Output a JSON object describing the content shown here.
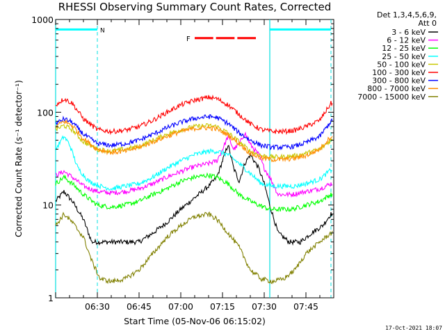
{
  "chart_data": {
    "type": "line",
    "title": "RHESSI Observing Summary Count Rates, Corrected",
    "xlabel": "Start Time (05-Nov-06 06:15:02)",
    "ylabel": "Corrected Count Rate (s⁻¹ detector⁻¹)",
    "timestamp": "17-Oct-2021 18:07",
    "yscale": "log",
    "ylim": [
      1,
      1000
    ],
    "xlim_minutes": [
      0,
      100
    ],
    "x_ticks": [
      {
        "label": "06:30",
        "t": 15
      },
      {
        "label": "06:45",
        "t": 30
      },
      {
        "label": "07:00",
        "t": 45
      },
      {
        "label": "07:15",
        "t": 60
      },
      {
        "label": "07:30",
        "t": 75
      },
      {
        "label": "07:45",
        "t": 90
      }
    ],
    "y_ticks": [
      {
        "label": "1",
        "v": 1
      },
      {
        "label": "10",
        "v": 10
      },
      {
        "label": "100",
        "v": 100
      },
      {
        "label": "1000",
        "v": 1000
      }
    ],
    "legend_header": [
      "Det 1,3,4,5,6,9,",
      "Att 0"
    ],
    "legend_position": "right",
    "series": [
      {
        "name": "3 - 6 keV",
        "color": "#000000",
        "points": [
          [
            0,
            11
          ],
          [
            3,
            14
          ],
          [
            6,
            11
          ],
          [
            10,
            7
          ],
          [
            13,
            4
          ],
          [
            16,
            4
          ],
          [
            20,
            4
          ],
          [
            25,
            4
          ],
          [
            30,
            4
          ],
          [
            35,
            5
          ],
          [
            40,
            6.5
          ],
          [
            45,
            9
          ],
          [
            50,
            12
          ],
          [
            55,
            16
          ],
          [
            58,
            20
          ],
          [
            60,
            30
          ],
          [
            62,
            45
          ],
          [
            64,
            25
          ],
          [
            66,
            18
          ],
          [
            68,
            28
          ],
          [
            70,
            35
          ],
          [
            73,
            25
          ],
          [
            75,
            17
          ],
          [
            77,
            10
          ],
          [
            80,
            5
          ],
          [
            84,
            4
          ],
          [
            88,
            4
          ],
          [
            92,
            5
          ],
          [
            96,
            6
          ],
          [
            99,
            8
          ]
        ]
      },
      {
        "name": "6 - 12 keV",
        "color": "#ff00ff",
        "points": [
          [
            0,
            21
          ],
          [
            3,
            23
          ],
          [
            6,
            20
          ],
          [
            10,
            16
          ],
          [
            15,
            14
          ],
          [
            20,
            13.5
          ],
          [
            25,
            14
          ],
          [
            30,
            15
          ],
          [
            35,
            17
          ],
          [
            40,
            20
          ],
          [
            45,
            23
          ],
          [
            50,
            26
          ],
          [
            55,
            28
          ],
          [
            58,
            30
          ],
          [
            60,
            40
          ],
          [
            62,
            55
          ],
          [
            64,
            40
          ],
          [
            66,
            45
          ],
          [
            68,
            60
          ],
          [
            70,
            45
          ],
          [
            73,
            35
          ],
          [
            75,
            25
          ],
          [
            77,
            20
          ],
          [
            80,
            13
          ],
          [
            85,
            13
          ],
          [
            90,
            14
          ],
          [
            95,
            15
          ],
          [
            99,
            17
          ]
        ]
      },
      {
        "name": "12 - 25 keV",
        "color": "#00ff00",
        "points": [
          [
            0,
            17
          ],
          [
            3,
            20
          ],
          [
            6,
            17
          ],
          [
            10,
            13
          ],
          [
            15,
            10
          ],
          [
            20,
            9.5
          ],
          [
            25,
            10
          ],
          [
            30,
            11
          ],
          [
            35,
            13
          ],
          [
            40,
            15
          ],
          [
            45,
            18
          ],
          [
            50,
            20
          ],
          [
            55,
            21
          ],
          [
            58,
            20
          ],
          [
            62,
            17
          ],
          [
            66,
            13
          ],
          [
            70,
            11
          ],
          [
            73,
            10
          ],
          [
            77,
            9
          ],
          [
            80,
            9
          ],
          [
            85,
            9
          ],
          [
            90,
            10
          ],
          [
            95,
            11
          ],
          [
            99,
            13
          ]
        ]
      },
      {
        "name": "25 - 50 keV",
        "color": "#00ffff",
        "points": [
          [
            0,
            40
          ],
          [
            3,
            55
          ],
          [
            5,
            45
          ],
          [
            8,
            25
          ],
          [
            12,
            18
          ],
          [
            16,
            16
          ],
          [
            20,
            15
          ],
          [
            25,
            16
          ],
          [
            30,
            17
          ],
          [
            35,
            20
          ],
          [
            40,
            25
          ],
          [
            45,
            30
          ],
          [
            50,
            35
          ],
          [
            55,
            38
          ],
          [
            58,
            38
          ],
          [
            62,
            35
          ],
          [
            66,
            28
          ],
          [
            70,
            22
          ],
          [
            74,
            17
          ],
          [
            78,
            16
          ],
          [
            82,
            16
          ],
          [
            86,
            16
          ],
          [
            90,
            17
          ],
          [
            95,
            19
          ],
          [
            99,
            24
          ]
        ]
      },
      {
        "name": "50 - 100 keV",
        "color": "#c8c800",
        "points": [
          [
            0,
            65
          ],
          [
            3,
            72
          ],
          [
            6,
            65
          ],
          [
            10,
            48
          ],
          [
            15,
            40
          ],
          [
            20,
            38
          ],
          [
            25,
            40
          ],
          [
            30,
            43
          ],
          [
            35,
            50
          ],
          [
            40,
            58
          ],
          [
            45,
            65
          ],
          [
            50,
            70
          ],
          [
            55,
            72
          ],
          [
            58,
            70
          ],
          [
            62,
            60
          ],
          [
            66,
            48
          ],
          [
            70,
            38
          ],
          [
            74,
            34
          ],
          [
            78,
            33
          ],
          [
            82,
            33
          ],
          [
            86,
            34
          ],
          [
            90,
            36
          ],
          [
            95,
            40
          ],
          [
            99,
            50
          ]
        ]
      },
      {
        "name": "100 - 300 keV",
        "color": "#ff0000",
        "points": [
          [
            0,
            120
          ],
          [
            3,
            140
          ],
          [
            6,
            125
          ],
          [
            10,
            85
          ],
          [
            15,
            65
          ],
          [
            20,
            62
          ],
          [
            25,
            64
          ],
          [
            30,
            70
          ],
          [
            35,
            82
          ],
          [
            40,
            100
          ],
          [
            45,
            120
          ],
          [
            50,
            135
          ],
          [
            55,
            145
          ],
          [
            58,
            140
          ],
          [
            62,
            120
          ],
          [
            66,
            95
          ],
          [
            70,
            75
          ],
          [
            74,
            65
          ],
          [
            78,
            62
          ],
          [
            82,
            62
          ],
          [
            86,
            64
          ],
          [
            90,
            70
          ],
          [
            95,
            82
          ],
          [
            99,
            125
          ]
        ]
      },
      {
        "name": "300 - 800 keV",
        "color": "#0000ff",
        "points": [
          [
            0,
            75
          ],
          [
            3,
            85
          ],
          [
            6,
            78
          ],
          [
            10,
            58
          ],
          [
            15,
            46
          ],
          [
            20,
            44
          ],
          [
            25,
            46
          ],
          [
            30,
            50
          ],
          [
            35,
            58
          ],
          [
            40,
            68
          ],
          [
            45,
            78
          ],
          [
            50,
            86
          ],
          [
            55,
            90
          ],
          [
            58,
            88
          ],
          [
            62,
            76
          ],
          [
            66,
            60
          ],
          [
            70,
            50
          ],
          [
            74,
            44
          ],
          [
            78,
            42
          ],
          [
            82,
            42
          ],
          [
            86,
            43
          ],
          [
            90,
            47
          ],
          [
            95,
            55
          ],
          [
            99,
            80
          ]
        ]
      },
      {
        "name": "800 - 7000 keV",
        "color": "#ff8c00",
        "points": [
          [
            0,
            70
          ],
          [
            3,
            80
          ],
          [
            6,
            72
          ],
          [
            10,
            52
          ],
          [
            15,
            40
          ],
          [
            20,
            37
          ],
          [
            25,
            38
          ],
          [
            30,
            42
          ],
          [
            35,
            48
          ],
          [
            40,
            55
          ],
          [
            45,
            62
          ],
          [
            50,
            67
          ],
          [
            55,
            68
          ],
          [
            58,
            66
          ],
          [
            62,
            57
          ],
          [
            66,
            46
          ],
          [
            70,
            36
          ],
          [
            74,
            32
          ],
          [
            78,
            31
          ],
          [
            82,
            31
          ],
          [
            86,
            32
          ],
          [
            90,
            34
          ],
          [
            95,
            40
          ],
          [
            99,
            55
          ]
        ]
      },
      {
        "name": "7000 - 15000 keV",
        "color": "#808000",
        "points": [
          [
            0,
            6
          ],
          [
            3,
            8
          ],
          [
            6,
            6.5
          ],
          [
            10,
            4.5
          ],
          [
            13,
            2.5
          ],
          [
            16,
            1.6
          ],
          [
            20,
            1.5
          ],
          [
            25,
            1.6
          ],
          [
            30,
            2
          ],
          [
            35,
            3
          ],
          [
            40,
            4.5
          ],
          [
            45,
            6
          ],
          [
            50,
            7.5
          ],
          [
            55,
            8
          ],
          [
            58,
            7
          ],
          [
            62,
            5
          ],
          [
            66,
            3.5
          ],
          [
            70,
            2
          ],
          [
            74,
            1.6
          ],
          [
            78,
            1.5
          ],
          [
            82,
            1.6
          ],
          [
            86,
            2
          ],
          [
            90,
            3
          ],
          [
            95,
            4
          ],
          [
            99,
            5
          ]
        ]
      }
    ],
    "annotations": [
      {
        "label": "N",
        "color": "#00ffff",
        "bar": [
          0,
          15
        ],
        "level": 780
      },
      {
        "label": "F",
        "color": "#ff0000",
        "bar": [
          50,
          73
        ],
        "level": 630
      }
    ],
    "markers": {
      "night_lines_dashed": [
        15,
        99
      ],
      "cyan_solid_lines": [
        0,
        77
      ]
    }
  }
}
